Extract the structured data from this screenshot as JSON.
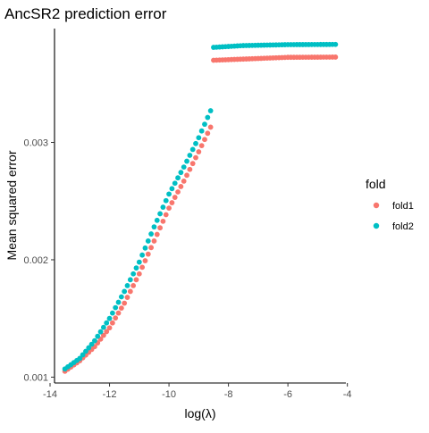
{
  "chart_data": {
    "type": "scatter",
    "title": "AncSR2 prediction error",
    "xlabel": "log(λ)",
    "ylabel": "Mean squared error",
    "xlim": [
      -13.85,
      -4.05
    ],
    "ylim": [
      0.00095,
      0.00397
    ],
    "x_ticks": [
      -14,
      -12,
      -10,
      -8,
      -6,
      -4
    ],
    "x_tick_labels": [
      "-14",
      "-12",
      "-10",
      "-8",
      "-6",
      "-4"
    ],
    "y_ticks": [
      0.001,
      0.002,
      0.003
    ],
    "y_tick_labels": [
      "0.001",
      "0.002",
      "0.003"
    ],
    "grid": false,
    "legend": {
      "title": "fold",
      "placement": "right"
    },
    "series": [
      {
        "name": "fold1",
        "color": "#F8766D",
        "x_range": [
          -13.5,
          -4.4
        ],
        "step": 0.1,
        "curve_knots": [
          [
            -13.5,
            0.00105
          ],
          [
            -13.0,
            0.00114
          ],
          [
            -12.5,
            0.00126
          ],
          [
            -12.0,
            0.00142
          ],
          [
            -11.5,
            0.00163
          ],
          [
            -11.0,
            0.00188
          ],
          [
            -10.5,
            0.00216
          ],
          [
            -10.0,
            0.00244
          ],
          [
            -9.5,
            0.00267
          ],
          [
            -9.0,
            0.00292
          ],
          [
            -8.6,
            0.00313
          ]
        ],
        "plateau_knots": [
          [
            -8.5,
            0.0037
          ],
          [
            -7.5,
            0.00371
          ],
          [
            -6.0,
            0.003725
          ],
          [
            -4.4,
            0.003727
          ]
        ]
      },
      {
        "name": "fold2",
        "color": "#00BFC4",
        "x_range": [
          -13.5,
          -4.4
        ],
        "step": 0.1,
        "curve_knots": [
          [
            -13.5,
            0.00107
          ],
          [
            -13.0,
            0.00116
          ],
          [
            -12.5,
            0.00131
          ],
          [
            -12.0,
            0.0015
          ],
          [
            -11.5,
            0.00173
          ],
          [
            -11.0,
            0.00198
          ],
          [
            -10.5,
            0.00228
          ],
          [
            -10.0,
            0.00256
          ],
          [
            -9.5,
            0.00279
          ],
          [
            -9.0,
            0.00304
          ],
          [
            -8.6,
            0.00327
          ]
        ],
        "plateau_knots": [
          [
            -8.5,
            0.00381
          ],
          [
            -7.5,
            0.003825
          ],
          [
            -6.0,
            0.003833
          ],
          [
            -4.4,
            0.003835
          ]
        ]
      }
    ]
  }
}
